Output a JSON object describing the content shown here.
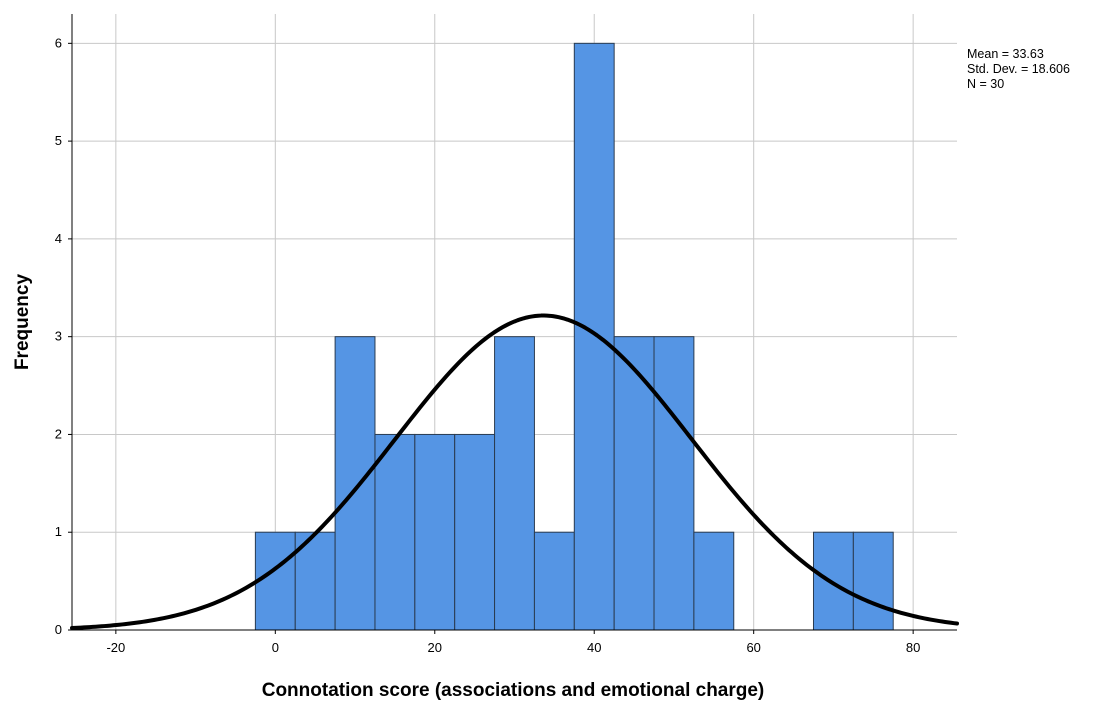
{
  "chart_data": {
    "type": "bar",
    "subtype": "histogram",
    "xlabel": "Connotation score (associations and emotional charge)",
    "ylabel": "Frequency",
    "xlim": [
      -25.5,
      85.5
    ],
    "ylim": [
      0,
      6.3
    ],
    "x_ticks": [
      -20,
      0,
      20,
      40,
      60,
      80
    ],
    "y_ticks": [
      0,
      1,
      2,
      3,
      4,
      5,
      6
    ],
    "grid": true,
    "bin_width": 5,
    "bins": [
      {
        "start": -2.5,
        "end": 2.5,
        "value": 1
      },
      {
        "start": 2.5,
        "end": 7.5,
        "value": 1
      },
      {
        "start": 7.5,
        "end": 12.5,
        "value": 3
      },
      {
        "start": 12.5,
        "end": 17.5,
        "value": 2
      },
      {
        "start": 17.5,
        "end": 22.5,
        "value": 2
      },
      {
        "start": 22.5,
        "end": 27.5,
        "value": 2
      },
      {
        "start": 27.5,
        "end": 32.5,
        "value": 3
      },
      {
        "start": 32.5,
        "end": 37.5,
        "value": 1
      },
      {
        "start": 37.5,
        "end": 42.5,
        "value": 6
      },
      {
        "start": 42.5,
        "end": 47.5,
        "value": 3
      },
      {
        "start": 47.5,
        "end": 52.5,
        "value": 3
      },
      {
        "start": 52.5,
        "end": 57.5,
        "value": 1
      },
      {
        "start": 67.5,
        "end": 72.5,
        "value": 1
      },
      {
        "start": 72.5,
        "end": 77.5,
        "value": 1
      }
    ],
    "normal_curve": {
      "mean": 33.63,
      "std": 18.606,
      "n": 30
    },
    "bar_color": "#5595e4",
    "bar_stroke": "#2a3b50",
    "curve_color": "#000000",
    "grid_color": "#c8c8c8",
    "stats_lines": [
      "Mean = 33.63",
      "Std. Dev. = 18.606",
      "N = 30"
    ],
    "legend_placement": "top-right"
  }
}
